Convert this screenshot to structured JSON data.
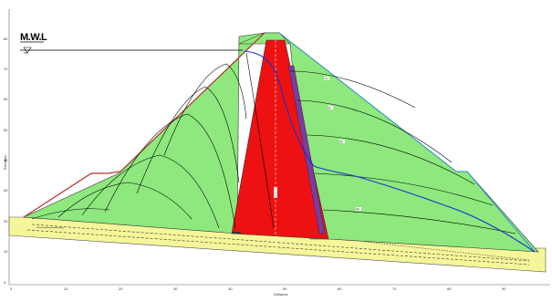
{
  "diagram": {
    "water_level_label": "M.W.L",
    "x_axis_label": "Distance",
    "y_axis_label": "Elevation",
    "x_ticks": [
      "0",
      "10",
      "20",
      "30",
      "40",
      "50",
      "60",
      "70",
      "80",
      "90"
    ],
    "y_ticks": [
      "0",
      "10",
      "20",
      "30",
      "40",
      "50",
      "60",
      "70",
      "80"
    ],
    "contour_labels": [
      "70",
      "60",
      "50",
      "40"
    ],
    "colors": {
      "shell": "#8ee87e",
      "core": "#ee1111",
      "foundation": "#f5f59a",
      "phreatic_line": "#1a2fd6",
      "upstream_face": "#b03030",
      "downstream_face": "#2d8fd0",
      "filter": "#7a3d9a",
      "equipotential": "#000000"
    }
  }
}
